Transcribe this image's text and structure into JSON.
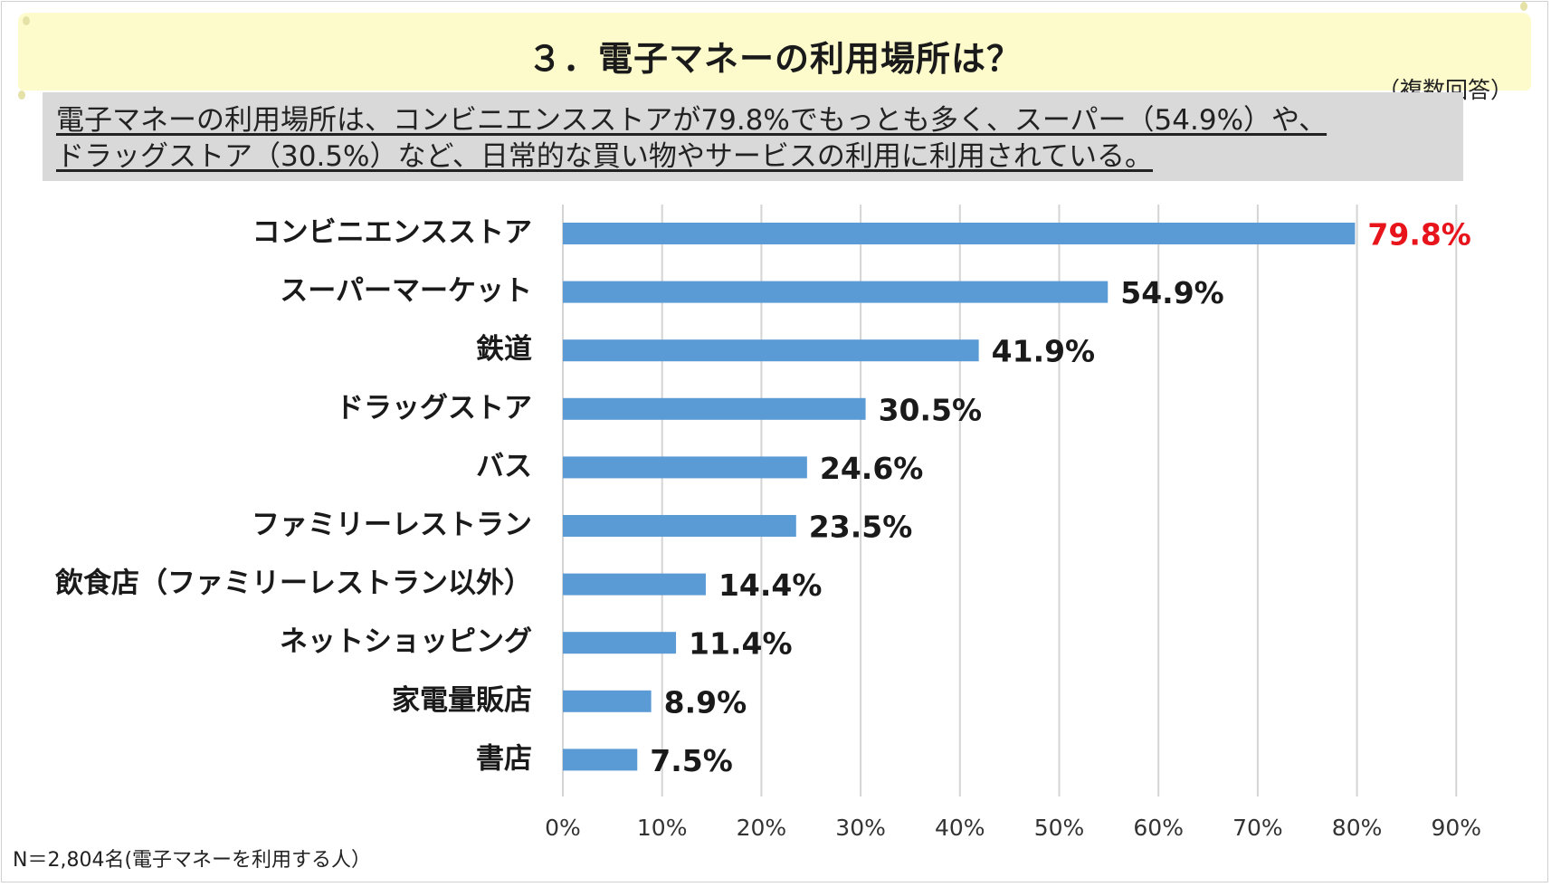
{
  "header": {
    "title": "３．電子マネーの利用場所は？",
    "note": "（複数回答）"
  },
  "summary": {
    "line1": "電子マネーの利用場所は、コンビニエンスストアが79.8%でもっとも多く、スーパー（54.9%）や、",
    "line2": "ドラッグストア（30.5%）など、日常的な買い物やサービスの利用に利用されている。"
  },
  "footnote": "N＝2,804名(電子マネーを利用する人）",
  "colors": {
    "bar": "#5b9bd5",
    "highlight_label": "#e8141c",
    "label": "#1a1a1a",
    "grid": "#d4d4d4",
    "banner": "#fdfbcb",
    "summary_bg": "#d9d9d9"
  },
  "chart_data": {
    "type": "bar",
    "orientation": "horizontal",
    "categories": [
      "コンビニエンスストア",
      "スーパーマーケット",
      "鉄道",
      "ドラッグストア",
      "バス",
      "ファミリーレストラン",
      "飲食店（ファミリーレストラン以外）",
      "ネットショッピング",
      "家電量販店",
      "書店"
    ],
    "values": [
      79.8,
      54.9,
      41.9,
      30.5,
      24.6,
      23.5,
      14.4,
      11.4,
      8.9,
      7.5
    ],
    "value_labels": [
      "79.8%",
      "54.9%",
      "41.9%",
      "30.5%",
      "24.6%",
      "23.5%",
      "14.4%",
      "11.4%",
      "8.9%",
      "7.5%"
    ],
    "highlight_index": 0,
    "xlim": [
      0,
      90
    ],
    "xticks": [
      "0%",
      "10%",
      "20%",
      "30%",
      "40%",
      "50%",
      "60%",
      "70%",
      "80%",
      "90%"
    ],
    "grid": true,
    "legend": "none"
  }
}
